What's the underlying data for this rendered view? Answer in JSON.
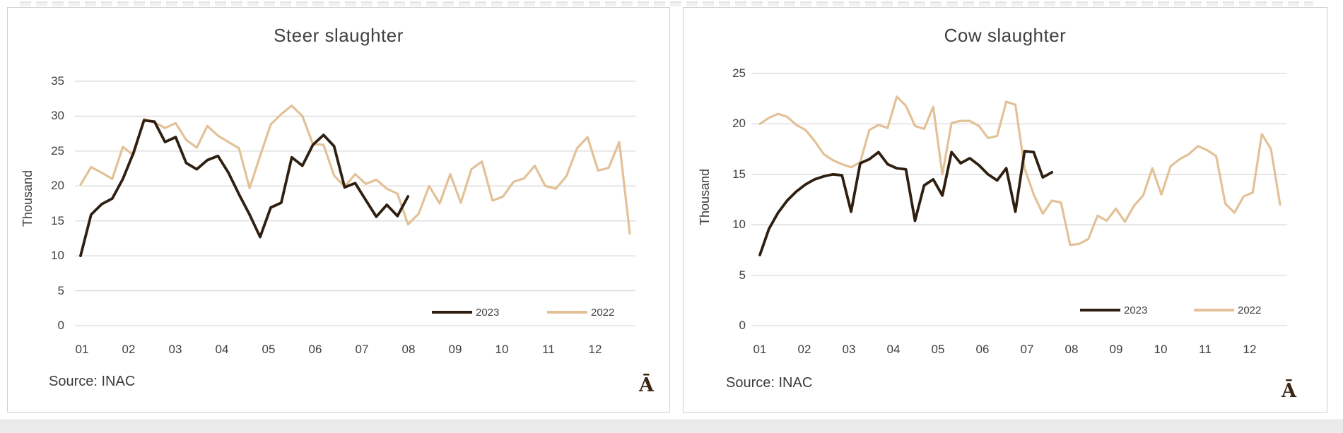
{
  "artifact": {
    "note_glyph": "Ā"
  },
  "chart_data": [
    {
      "type": "line",
      "title": "Steer slaughter",
      "ylabel": "Thousand",
      "xlabel": "",
      "source": "Source: INAC",
      "corner_glyph": "Ā",
      "x_categories": [
        "01",
        "02",
        "03",
        "04",
        "05",
        "06",
        "07",
        "08",
        "09",
        "10",
        "11",
        "12"
      ],
      "x_unit": "month (weekly observations)",
      "ylim": [
        0,
        35
      ],
      "yticks": [
        35,
        30,
        25,
        20,
        15,
        10,
        5,
        0
      ],
      "grid": "horizontal",
      "legend_position": "inside-bottom-right",
      "grid_color": "#d9d9d9",
      "series": [
        {
          "name": "2023",
          "color": "#2e1f10",
          "values": [
            10.0,
            15.9,
            17.4,
            18.2,
            21.0,
            24.7,
            29.4,
            29.2,
            26.3,
            27.0,
            23.3,
            22.4,
            23.7,
            24.3,
            21.9,
            18.8,
            15.9,
            12.7,
            16.9,
            17.6,
            24.1,
            22.9,
            25.9,
            27.3,
            25.7,
            19.8,
            20.4,
            18.0,
            15.6,
            17.3,
            15.7,
            18.5
          ]
        },
        {
          "name": "2022",
          "color": "#e3c198",
          "values": [
            20.2,
            22.7,
            21.9,
            21.0,
            25.6,
            24.4,
            29.6,
            29.1,
            28.3,
            29.0,
            26.6,
            25.5,
            28.6,
            27.2,
            26.3,
            25.4,
            19.7,
            24.3,
            28.8,
            30.3,
            31.5,
            30.0,
            26.0,
            25.9,
            21.5,
            19.9,
            21.7,
            20.3,
            20.9,
            19.6,
            18.9,
            14.5,
            16.0,
            20.0,
            17.5,
            21.7,
            17.6,
            22.4,
            23.5,
            17.9,
            18.5,
            20.6,
            21.1,
            22.9,
            20.0,
            19.6,
            21.4,
            25.4,
            27.0,
            22.2,
            22.6,
            26.3,
            13.2
          ]
        }
      ]
    },
    {
      "type": "line",
      "title": "Cow slaughter",
      "ylabel": "Thousand",
      "xlabel": "",
      "source": "Source: INAC",
      "corner_glyph": "Ā",
      "x_categories": [
        "01",
        "02",
        "03",
        "04",
        "05",
        "06",
        "07",
        "08",
        "09",
        "10",
        "11",
        "12"
      ],
      "x_unit": "month (weekly observations)",
      "ylim": [
        0,
        25
      ],
      "yticks": [
        25,
        20,
        15,
        10,
        5,
        0
      ],
      "grid": "horizontal",
      "legend_position": "inside-bottom-right",
      "grid_color": "#d9d9d9",
      "series": [
        {
          "name": "2023",
          "color": "#2e1f10",
          "values": [
            7.0,
            9.6,
            11.2,
            12.4,
            13.3,
            14.0,
            14.5,
            14.8,
            15.0,
            14.9,
            11.3,
            16.1,
            16.5,
            17.2,
            16.0,
            15.6,
            15.5,
            10.4,
            13.9,
            14.5,
            12.9,
            17.2,
            16.1,
            16.6,
            15.9,
            15.0,
            14.4,
            15.6,
            11.3,
            17.3,
            17.2,
            14.7,
            15.2
          ]
        },
        {
          "name": "2022",
          "color": "#e3c198",
          "values": [
            20.0,
            20.6,
            21.0,
            20.7,
            19.9,
            19.4,
            18.3,
            17.0,
            16.4,
            16.0,
            15.7,
            16.2,
            19.4,
            19.9,
            19.6,
            22.7,
            21.8,
            19.8,
            19.5,
            21.7,
            15.0,
            20.1,
            20.3,
            20.3,
            19.8,
            18.6,
            18.8,
            22.2,
            21.9,
            15.6,
            13.0,
            11.1,
            12.4,
            12.2,
            8.0,
            8.1,
            8.6,
            10.9,
            10.4,
            11.6,
            10.3,
            11.9,
            12.9,
            15.6,
            13.0,
            15.8,
            16.5,
            17.0,
            17.8,
            17.4,
            16.8,
            12.1,
            11.2,
            12.8,
            13.2,
            19.0,
            17.5,
            12.0
          ]
        }
      ]
    }
  ]
}
